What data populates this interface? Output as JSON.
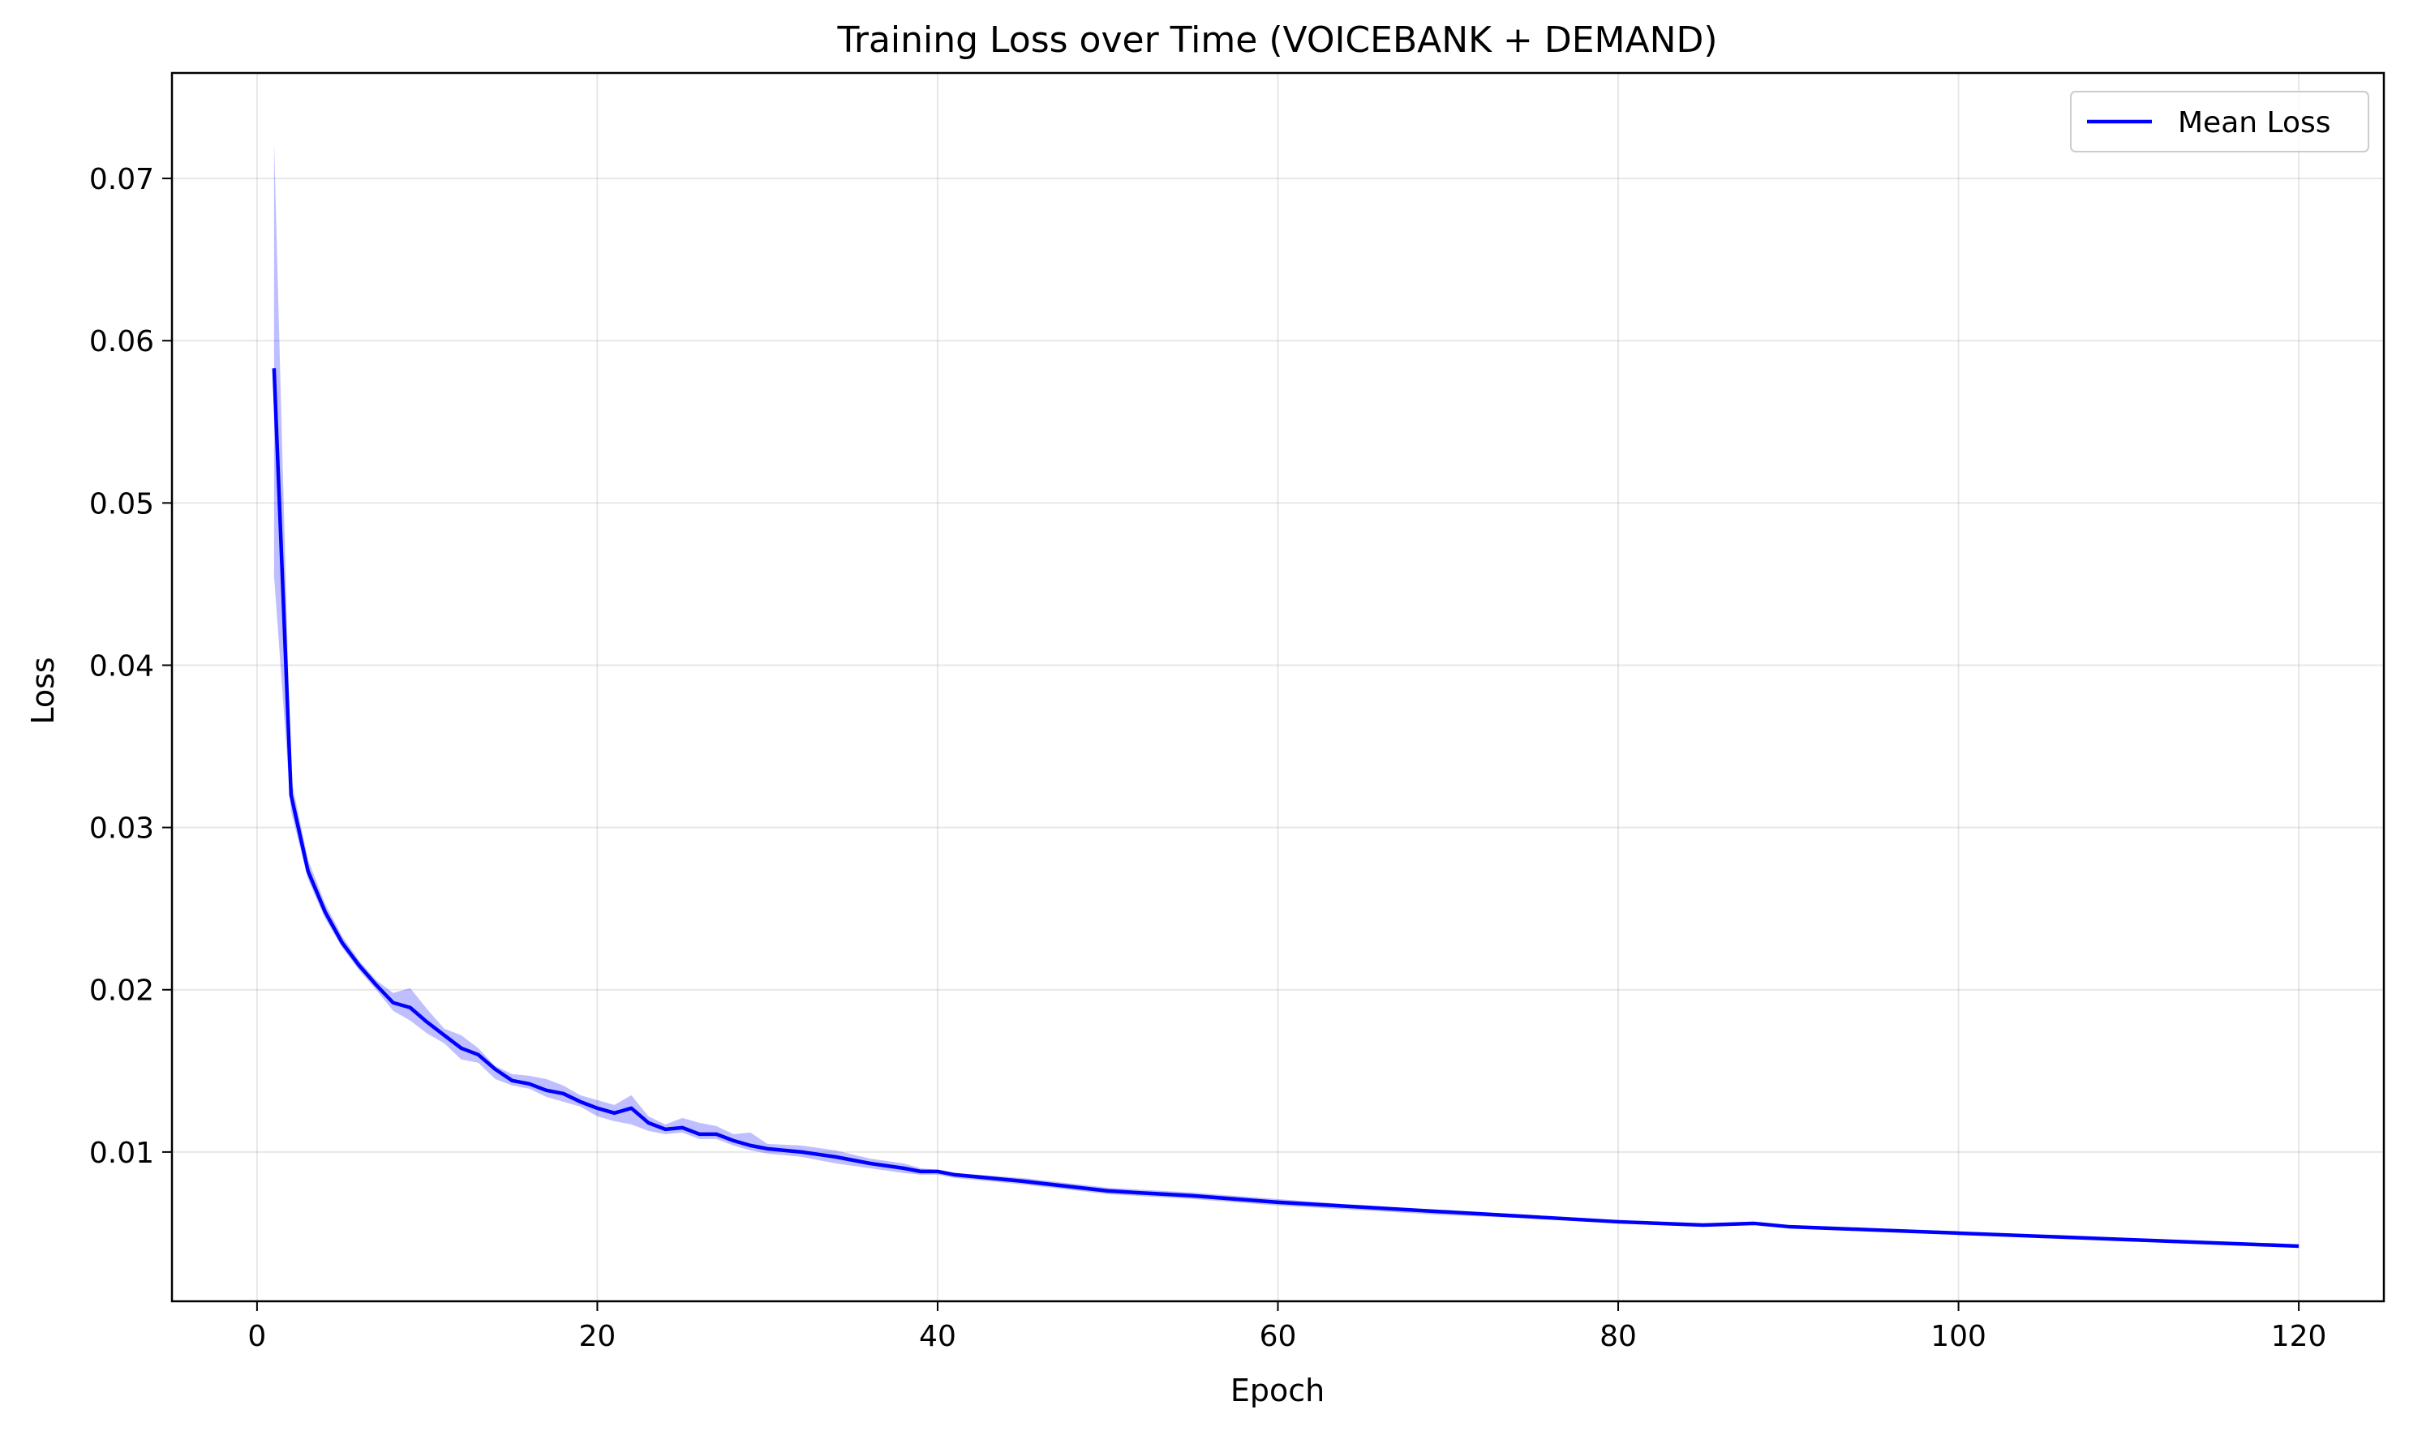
{
  "chart_data": {
    "type": "line",
    "title": "Training Loss over Time (VOICEBANK + DEMAND)",
    "xlabel": "Epoch",
    "ylabel": "Loss",
    "xlim": [
      -5,
      125
    ],
    "ylim": [
      0.0008,
      0.0765
    ],
    "xticks": [
      0,
      20,
      40,
      60,
      80,
      100,
      120
    ],
    "xtick_labels": [
      "0",
      "20",
      "40",
      "60",
      "80",
      "100",
      "120"
    ],
    "yticks": [
      0.01,
      0.02,
      0.03,
      0.04,
      0.05,
      0.06,
      0.07
    ],
    "ytick_labels": [
      "0.01",
      "0.02",
      "0.03",
      "0.04",
      "0.05",
      "0.06",
      "0.07"
    ],
    "grid": true,
    "legend": {
      "position": "top-right",
      "entries": [
        "Mean Loss"
      ]
    },
    "colors": {
      "line": "#0000ff",
      "band": "#0000ff"
    },
    "series": [
      {
        "name": "Mean Loss",
        "x": [
          1,
          2,
          3,
          4,
          5,
          6,
          7,
          8,
          9,
          10,
          11,
          12,
          13,
          14,
          15,
          16,
          17,
          18,
          19,
          20,
          21,
          22,
          23,
          24,
          25,
          26,
          27,
          28,
          29,
          30,
          32,
          34,
          36,
          38,
          39,
          40,
          41,
          45,
          50,
          55,
          60,
          65,
          70,
          75,
          80,
          85,
          88,
          90,
          95,
          100,
          105,
          110,
          115,
          120
        ],
        "values": [
          0.0583,
          0.032,
          0.0273,
          0.0248,
          0.0229,
          0.0215,
          0.0203,
          0.0192,
          0.0189,
          0.018,
          0.0172,
          0.0164,
          0.016,
          0.0151,
          0.0144,
          0.0142,
          0.0138,
          0.0136,
          0.0131,
          0.0127,
          0.0124,
          0.0127,
          0.0118,
          0.0114,
          0.0115,
          0.0111,
          0.0111,
          0.0107,
          0.0104,
          0.0102,
          0.01,
          0.0097,
          0.0093,
          0.009,
          0.0088,
          0.0088,
          0.0086,
          0.0082,
          0.0076,
          0.0073,
          0.0069,
          0.0066,
          0.0063,
          0.006,
          0.0057,
          0.0055,
          0.0056,
          0.0054,
          0.0052,
          0.005,
          0.0048,
          0.0046,
          0.0044,
          0.0042
        ],
        "band_upper": [
          0.0723,
          0.033,
          0.028,
          0.0253,
          0.0233,
          0.0218,
          0.0206,
          0.0198,
          0.0201,
          0.0188,
          0.0176,
          0.0172,
          0.0164,
          0.0153,
          0.0148,
          0.0147,
          0.0145,
          0.0141,
          0.0135,
          0.0132,
          0.0129,
          0.0135,
          0.0122,
          0.0117,
          0.0121,
          0.0118,
          0.0116,
          0.0111,
          0.0112,
          0.0105,
          0.0104,
          0.0101,
          0.0096,
          0.0093,
          0.009,
          0.0089,
          0.0087,
          0.0084,
          0.0078,
          0.0075,
          0.0071,
          0.0067,
          0.0064,
          0.0061,
          0.0058,
          0.0056,
          0.0057,
          0.0055,
          0.0053,
          0.0051,
          0.0049,
          0.0047,
          0.0045,
          0.0043
        ],
        "band_lower": [
          0.0455,
          0.031,
          0.0268,
          0.0244,
          0.0226,
          0.0212,
          0.02,
          0.0187,
          0.0181,
          0.0173,
          0.0167,
          0.0157,
          0.0155,
          0.0145,
          0.0141,
          0.0139,
          0.0134,
          0.0131,
          0.0128,
          0.0122,
          0.0119,
          0.0117,
          0.0113,
          0.0111,
          0.0112,
          0.0108,
          0.0108,
          0.0104,
          0.0101,
          0.0099,
          0.0097,
          0.0093,
          0.009,
          0.0087,
          0.0086,
          0.0086,
          0.0084,
          0.008,
          0.0074,
          0.0071,
          0.0067,
          0.0064,
          0.0061,
          0.0059,
          0.0056,
          0.0054,
          0.0055,
          0.0053,
          0.0051,
          0.0049,
          0.0047,
          0.0045,
          0.0043,
          0.0041
        ]
      }
    ]
  }
}
